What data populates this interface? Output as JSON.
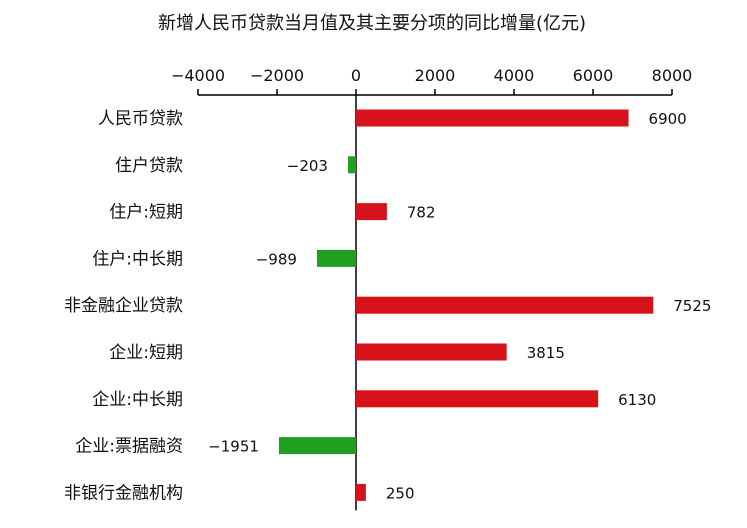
{
  "chart_data": {
    "type": "bar",
    "orientation": "horizontal",
    "title": "新增人民币贷款当月值及其主要分项的同比增量(亿元)",
    "xlabel": "",
    "ylabel": "",
    "xlim": [
      -4000,
      8000
    ],
    "x_ticks": [
      -4000,
      -2000,
      0,
      2000,
      4000,
      6000,
      8000
    ],
    "x_tick_labels": [
      "−4000",
      "−2000",
      "0",
      "2000",
      "4000",
      "6000",
      "8000"
    ],
    "x_axis_position": "top",
    "grid": false,
    "categories": [
      "人民币贷款",
      "住户贷款",
      "住户:短期",
      "住户:中长期",
      "非金融企业贷款",
      "企业:短期",
      "企业:中长期",
      "企业:票据融资",
      "非银行金融机构"
    ],
    "values": [
      6900,
      -203,
      782,
      -989,
      7525,
      3815,
      6130,
      -1951,
      250
    ],
    "value_labels": [
      "6900",
      "−203",
      "782",
      "−989",
      "7525",
      "3815",
      "6130",
      "−1951",
      "250"
    ],
    "colors": {
      "positive": "#d7121a",
      "negative": "#20a020",
      "axis": "#000000"
    }
  }
}
